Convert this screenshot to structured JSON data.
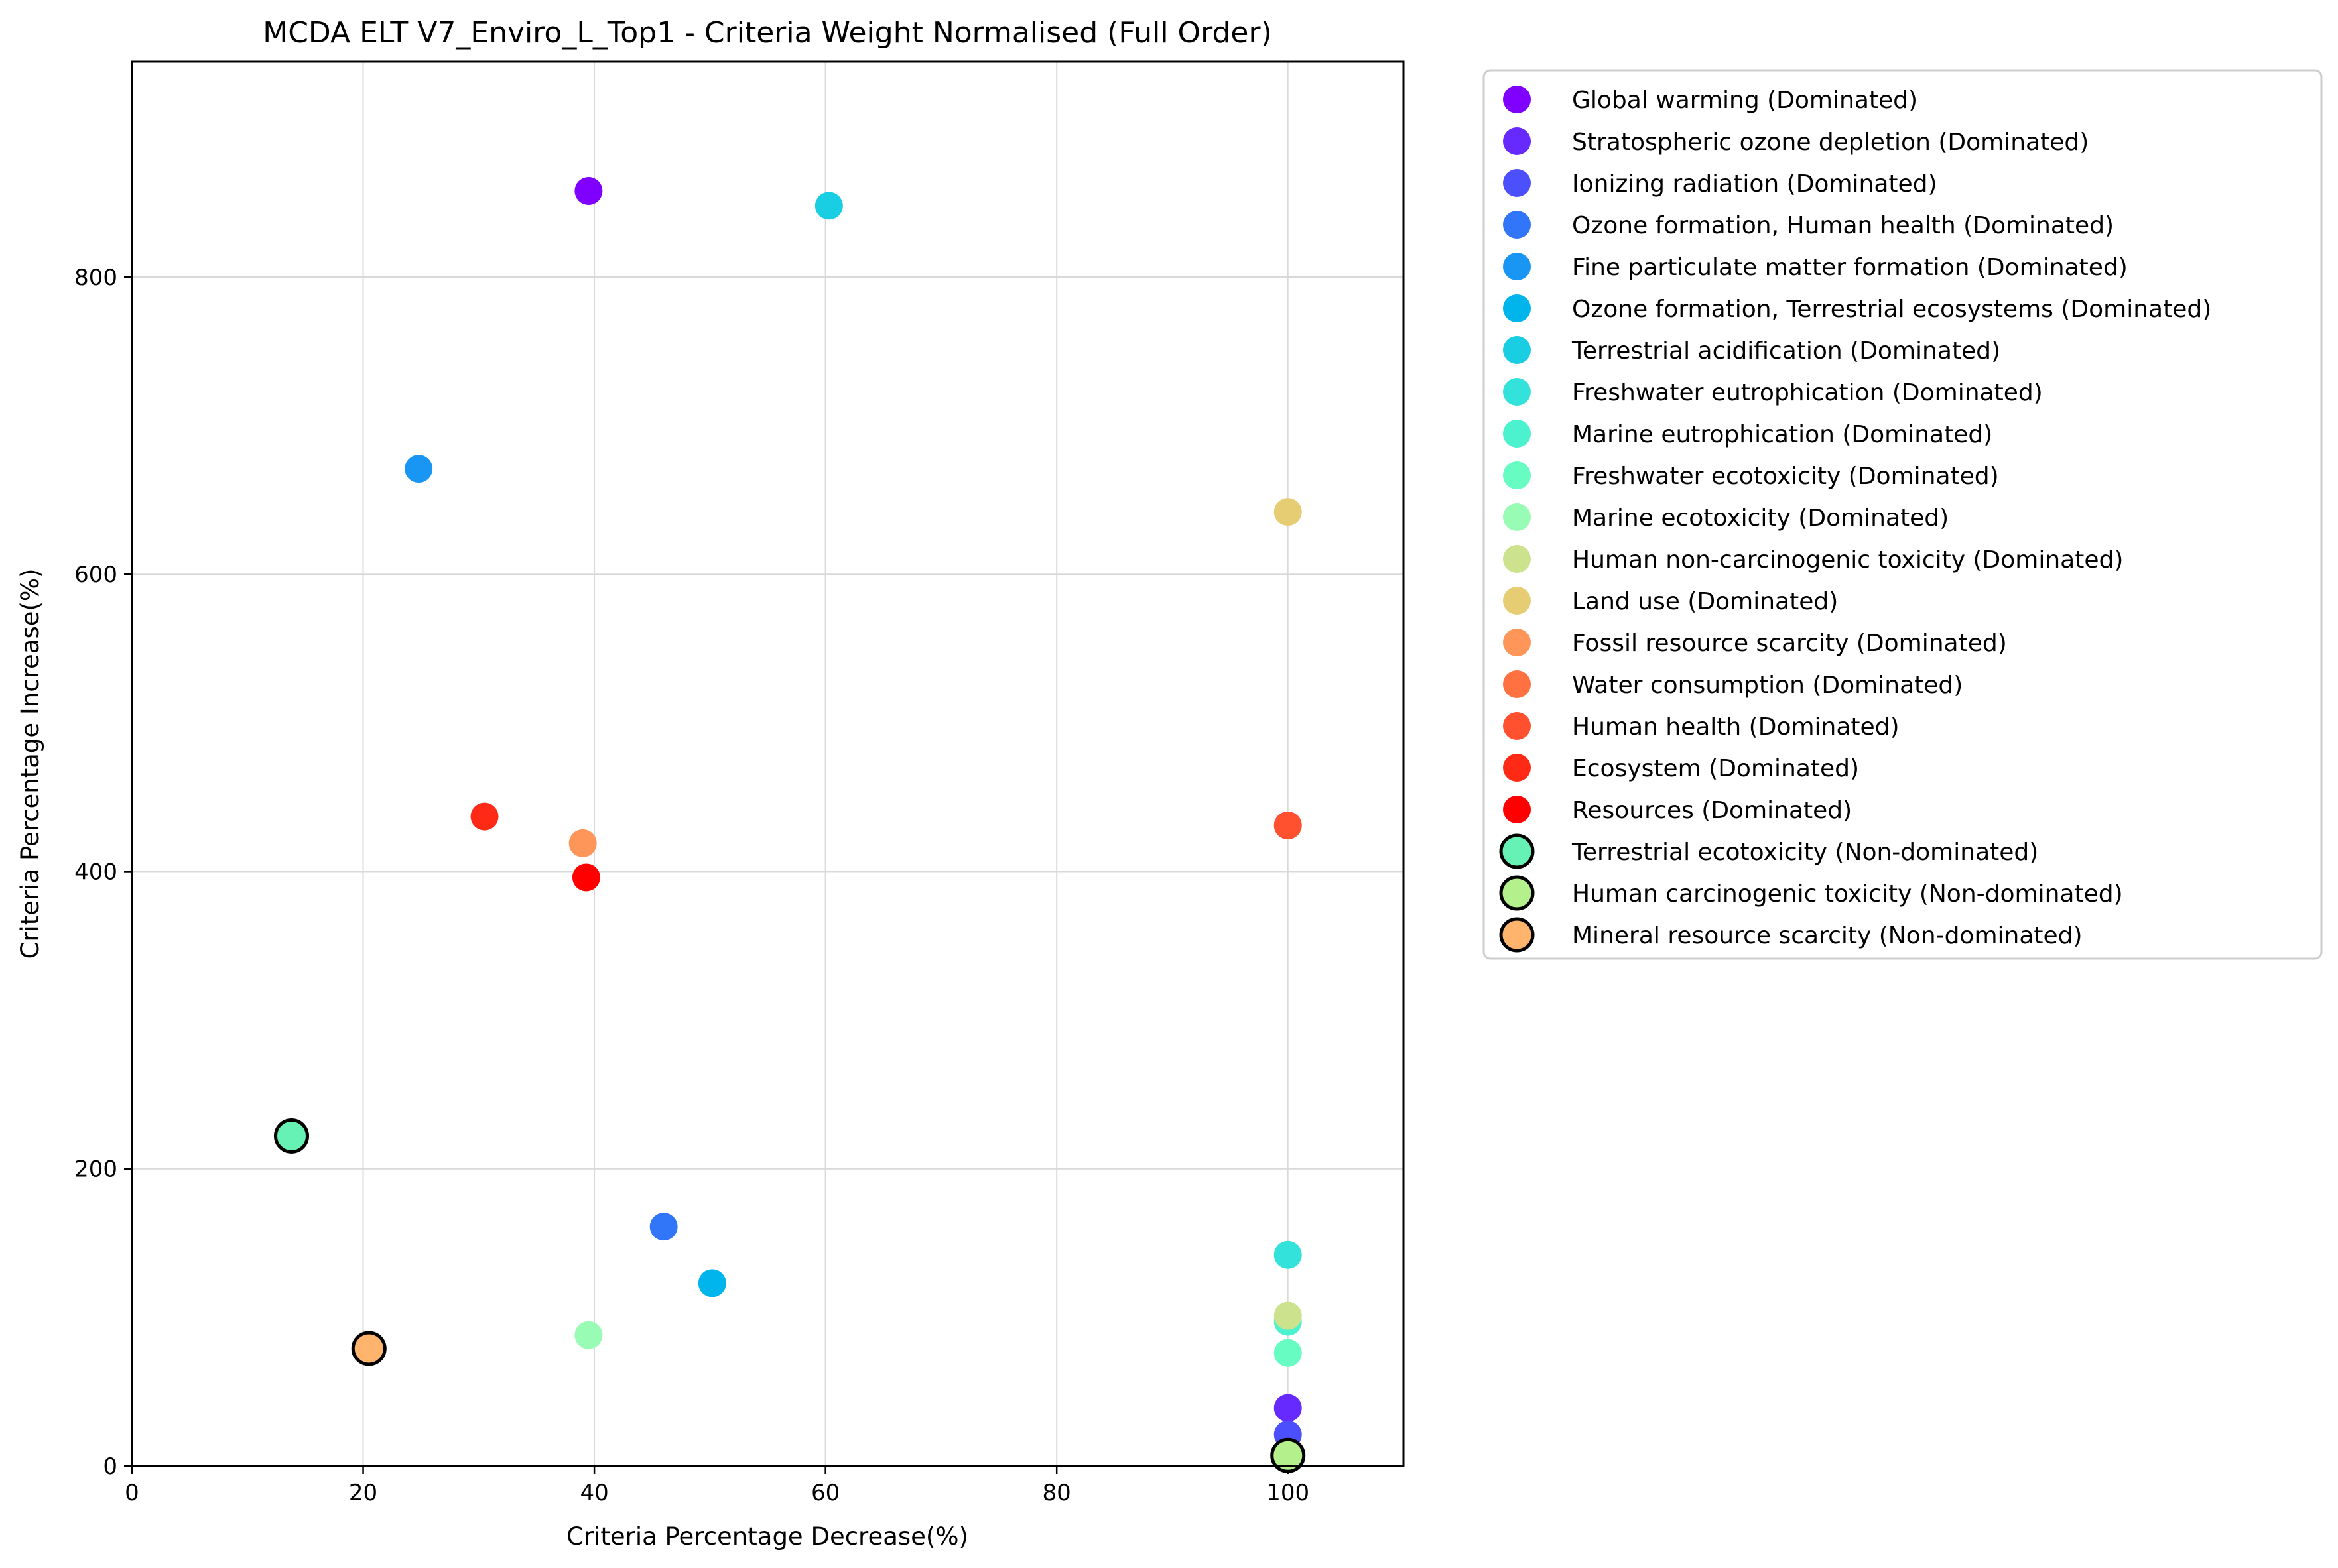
{
  "chart_data": {
    "type": "scatter",
    "title": "MCDA ELT V7_Enviro_L_Top1 - Criteria Weight Normalised (Full Order)",
    "xlabel": "Criteria Percentage Decrease(%)",
    "ylabel": "Criteria Percentage Increase(%)",
    "xlim": [
      0,
      110
    ],
    "ylim": [
      0,
      945
    ],
    "xticks": [
      0,
      20,
      40,
      60,
      80,
      100
    ],
    "yticks": [
      0,
      200,
      400,
      600,
      800
    ],
    "grid": true,
    "legend_position": "outside-right-top",
    "series": [
      {
        "name": "Global warming (Dominated)",
        "color": "#8000ff",
        "x": 39.5,
        "y": 858,
        "dominated": true
      },
      {
        "name": "Stratospheric ozone depletion (Dominated)",
        "color": "#6629fe",
        "x": 100,
        "y": 39,
        "dominated": true
      },
      {
        "name": "Ionizing radiation (Dominated)",
        "color": "#4c50fc",
        "x": 100,
        "y": 21,
        "dominated": true
      },
      {
        "name": "Ozone formation, Human health (Dominated)",
        "color": "#3175f8",
        "x": 46,
        "y": 161,
        "dominated": true
      },
      {
        "name": "Fine particulate matter formation (Dominated)",
        "color": "#1996f3",
        "x": 24.8,
        "y": 671,
        "dominated": true
      },
      {
        "name": "Ozone formation, Terrestrial ecosystems (Dominated)",
        "color": "#00b4ec",
        "x": 50.2,
        "y": 123,
        "dominated": true
      },
      {
        "name": "Terrestrial acidification (Dominated)",
        "color": "#19cde3",
        "x": 60.3,
        "y": 848,
        "dominated": true
      },
      {
        "name": "Freshwater eutrophication (Dominated)",
        "color": "#33e2da",
        "x": 100,
        "y": 142,
        "dominated": true
      },
      {
        "name": "Marine eutrophication (Dominated)",
        "color": "#4cf2ce",
        "x": 100,
        "y": 97,
        "dominated": true
      },
      {
        "name": "Freshwater ecotoxicity (Dominated)",
        "color": "#66fcc2",
        "x": 100,
        "y": 76,
        "dominated": true
      },
      {
        "name": "Marine ecotoxicity (Dominated)",
        "color": "#99fcb4",
        "x": 39.5,
        "y": 88,
        "dominated": true
      },
      {
        "name": "Human non-carcinogenic toxicity (Dominated)",
        "color": "#cce28c",
        "x": 100,
        "y": 101,
        "dominated": true
      },
      {
        "name": "Land use (Dominated)",
        "color": "#e6cd73",
        "x": 100,
        "y": 642,
        "dominated": true
      },
      {
        "name": "Fossil resource scarcity (Dominated)",
        "color": "#ff9659",
        "x": 39,
        "y": 419,
        "dominated": true
      },
      {
        "name": "Water consumption (Dominated)",
        "color": "#ff7140",
        "x": 100,
        "y": 431,
        "dominated": true
      },
      {
        "name": "Human health (Dominated)",
        "color": "#ff5030",
        "x": 100,
        "y": 431,
        "dominated": true
      },
      {
        "name": "Ecosystem (Dominated)",
        "color": "#ff2a15",
        "x": 30.5,
        "y": 437,
        "dominated": true
      },
      {
        "name": "Resources (Dominated)",
        "color": "#ff0000",
        "x": 39.3,
        "y": 396,
        "dominated": true
      },
      {
        "name": "Terrestrial ecotoxicity (Non-dominated)",
        "color": "#66f2b4",
        "x": 13.8,
        "y": 222,
        "dominated": false
      },
      {
        "name": "Human carcinogenic toxicity (Non-dominated)",
        "color": "#b4f08c",
        "x": 100,
        "y": 7,
        "dominated": false
      },
      {
        "name": "Mineral resource scarcity (Non-dominated)",
        "color": "#ffb46e",
        "x": 20.5,
        "y": 79,
        "dominated": false
      }
    ]
  }
}
